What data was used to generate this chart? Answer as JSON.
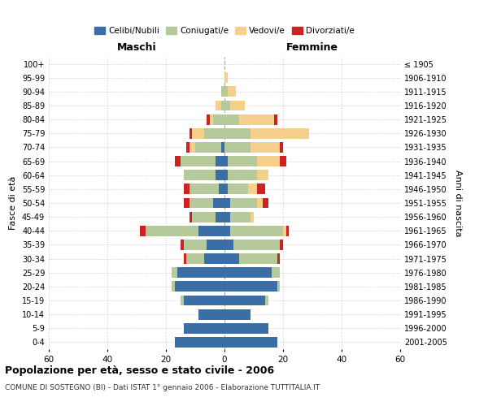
{
  "age_groups": [
    "0-4",
    "5-9",
    "10-14",
    "15-19",
    "20-24",
    "25-29",
    "30-34",
    "35-39",
    "40-44",
    "45-49",
    "50-54",
    "55-59",
    "60-64",
    "65-69",
    "70-74",
    "75-79",
    "80-84",
    "85-89",
    "90-94",
    "95-99",
    "100+"
  ],
  "birth_years": [
    "2001-2005",
    "1996-2000",
    "1991-1995",
    "1986-1990",
    "1981-1985",
    "1976-1980",
    "1971-1975",
    "1966-1970",
    "1961-1965",
    "1956-1960",
    "1951-1955",
    "1946-1950",
    "1941-1945",
    "1936-1940",
    "1931-1935",
    "1926-1930",
    "1921-1925",
    "1916-1920",
    "1911-1915",
    "1906-1910",
    "≤ 1905"
  ],
  "male": {
    "celibi": [
      17,
      14,
      9,
      14,
      17,
      16,
      7,
      6,
      9,
      3,
      4,
      2,
      3,
      3,
      1,
      0,
      0,
      0,
      0,
      0,
      0
    ],
    "coniugati": [
      0,
      0,
      0,
      1,
      1,
      2,
      6,
      8,
      18,
      8,
      8,
      10,
      11,
      12,
      9,
      7,
      4,
      1,
      1,
      0,
      0
    ],
    "vedovi": [
      0,
      0,
      0,
      0,
      0,
      0,
      0,
      0,
      0,
      0,
      0,
      0,
      0,
      0,
      2,
      4,
      1,
      2,
      0,
      0,
      0
    ],
    "divorziati": [
      0,
      0,
      0,
      0,
      0,
      0,
      1,
      1,
      2,
      1,
      2,
      2,
      0,
      2,
      1,
      1,
      1,
      0,
      0,
      0,
      0
    ]
  },
  "female": {
    "nubili": [
      18,
      15,
      9,
      14,
      18,
      16,
      5,
      3,
      2,
      2,
      2,
      1,
      1,
      1,
      0,
      0,
      0,
      0,
      0,
      0,
      0
    ],
    "coniugate": [
      0,
      0,
      0,
      1,
      1,
      3,
      13,
      16,
      18,
      7,
      9,
      7,
      10,
      10,
      9,
      9,
      5,
      2,
      1,
      0,
      0
    ],
    "vedove": [
      0,
      0,
      0,
      0,
      0,
      0,
      0,
      0,
      1,
      1,
      2,
      3,
      4,
      8,
      10,
      20,
      12,
      5,
      3,
      1,
      0
    ],
    "divorziate": [
      0,
      0,
      0,
      0,
      0,
      0,
      1,
      1,
      1,
      0,
      2,
      3,
      0,
      2,
      1,
      0,
      1,
      0,
      0,
      0,
      0
    ]
  },
  "colors": {
    "celibi": "#3a6ea5",
    "coniugati": "#b5c99a",
    "vedovi": "#f5d08a",
    "divorziati": "#cc2222"
  },
  "title": "Popolazione per età, sesso e stato civile - 2006",
  "subtitle": "COMUNE DI SOSTEGNO (BI) - Dati ISTAT 1° gennaio 2006 - Elaborazione TUTTITALIA.IT",
  "xlabel_left": "Maschi",
  "xlabel_right": "Femmine",
  "ylabel_left": "Fasce di età",
  "ylabel_right": "Anni di nascita",
  "xlim": 60,
  "background_color": "#ffffff",
  "grid_color": "#cccccc"
}
